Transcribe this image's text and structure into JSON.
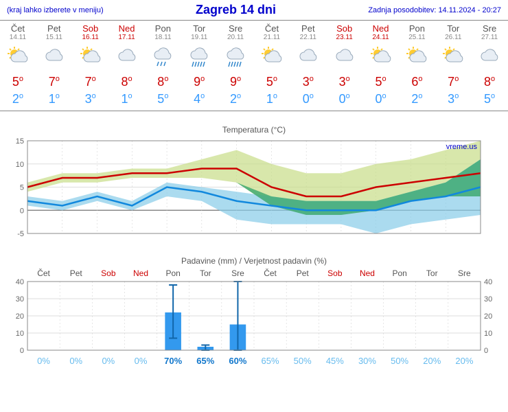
{
  "header": {
    "left": "(kraj lahko izberete v meniju)",
    "title": "Zagreb 14 dni",
    "right": "Zadnja posodobitev: 14.11.2024 - 20:27"
  },
  "days": [
    {
      "abbr": "Čet",
      "date": "14.11",
      "weekend": false,
      "icon": "partcloud",
      "hi": 5,
      "lo": 2
    },
    {
      "abbr": "Pet",
      "date": "15.11",
      "weekend": false,
      "icon": "cloud",
      "hi": 7,
      "lo": 1
    },
    {
      "abbr": "Sob",
      "date": "16.11",
      "weekend": true,
      "icon": "partcloud",
      "hi": 7,
      "lo": 3
    },
    {
      "abbr": "Ned",
      "date": "17.11",
      "weekend": true,
      "icon": "cloud",
      "hi": 8,
      "lo": 1
    },
    {
      "abbr": "Pon",
      "date": "18.11",
      "weekend": false,
      "icon": "rain",
      "hi": 8,
      "lo": 5
    },
    {
      "abbr": "Tor",
      "date": "19.11",
      "weekend": false,
      "icon": "heavyrain",
      "hi": 9,
      "lo": 4
    },
    {
      "abbr": "Sre",
      "date": "20.11",
      "weekend": false,
      "icon": "heavyrain",
      "hi": 9,
      "lo": 2
    },
    {
      "abbr": "Čet",
      "date": "21.11",
      "weekend": false,
      "icon": "partcloud",
      "hi": 5,
      "lo": 1
    },
    {
      "abbr": "Pet",
      "date": "22.11",
      "weekend": false,
      "icon": "cloud",
      "hi": 3,
      "lo": 0
    },
    {
      "abbr": "Sob",
      "date": "23.11",
      "weekend": true,
      "icon": "cloud",
      "hi": 3,
      "lo": 0
    },
    {
      "abbr": "Ned",
      "date": "24.11",
      "weekend": true,
      "icon": "partcloud",
      "hi": 5,
      "lo": 0
    },
    {
      "abbr": "Pon",
      "date": "25.11",
      "weekend": false,
      "icon": "partcloud",
      "hi": 6,
      "lo": 2
    },
    {
      "abbr": "Tor",
      "date": "26.11",
      "weekend": false,
      "icon": "partcloud",
      "hi": 7,
      "lo": 3
    },
    {
      "abbr": "Sre",
      "date": "27.11",
      "weekend": false,
      "icon": "cloud",
      "hi": 8,
      "lo": 5
    }
  ],
  "tempChart": {
    "title": "Temperatura (°C)",
    "ylim": [
      -5,
      15
    ],
    "yticks": [
      -5,
      0,
      5,
      10,
      15
    ],
    "watermark": "vreme.us",
    "hiSeries": [
      5,
      7,
      7,
      8,
      8,
      9,
      9,
      5,
      3,
      3,
      5,
      6,
      7,
      8
    ],
    "loSeries": [
      2,
      1,
      3,
      1,
      5,
      4,
      2,
      1,
      0,
      0,
      0,
      2,
      3,
      5
    ],
    "hiBandUpper": [
      6,
      8,
      8,
      9,
      9,
      11,
      13,
      10,
      8,
      8,
      10,
      11,
      13,
      15
    ],
    "hiBandLower": [
      4,
      6,
      6,
      7,
      7,
      7,
      6,
      1,
      -1,
      -1,
      0,
      2,
      3,
      3
    ],
    "loBandUpper": [
      3,
      2,
      4,
      2,
      6,
      5,
      4,
      3,
      2,
      2,
      2,
      4,
      6,
      11
    ],
    "loBandLower": [
      1,
      0,
      2,
      0,
      3,
      2,
      -2,
      -3,
      -3,
      -3,
      -5,
      -3,
      -2,
      -1
    ],
    "colors": {
      "hiLine": "#cc0000",
      "loLine": "#1188dd",
      "hiBand": "#c8dd88",
      "loBand": "#88cce8",
      "overlap": "#3aa86f",
      "grid": "#dddddd",
      "zeroLine": "#888888"
    }
  },
  "precipChart": {
    "title": "Padavine (mm) / Verjetnost padavin (%)",
    "ylim": [
      0,
      40
    ],
    "yticks": [
      0,
      10,
      20,
      30,
      40
    ],
    "bars": [
      0,
      0,
      0,
      0,
      22,
      2,
      15,
      0,
      0,
      0,
      0,
      0,
      0,
      0
    ],
    "errLow": [
      0,
      0,
      0,
      0,
      7,
      0,
      0,
      0,
      0,
      0,
      0,
      0,
      0,
      0
    ],
    "errHigh": [
      0,
      0,
      0,
      0,
      38,
      3,
      41,
      0,
      0,
      0,
      0,
      0,
      0,
      0
    ],
    "prob": [
      0,
      0,
      0,
      0,
      70,
      65,
      60,
      65,
      50,
      45,
      30,
      50,
      20,
      20
    ],
    "probBold": [
      false,
      false,
      false,
      false,
      true,
      true,
      true,
      false,
      false,
      false,
      false,
      false,
      false,
      false
    ],
    "colors": {
      "bar": "#3399ee",
      "err": "#1166aa",
      "grid": "#dddddd",
      "axis": "#888888"
    }
  }
}
